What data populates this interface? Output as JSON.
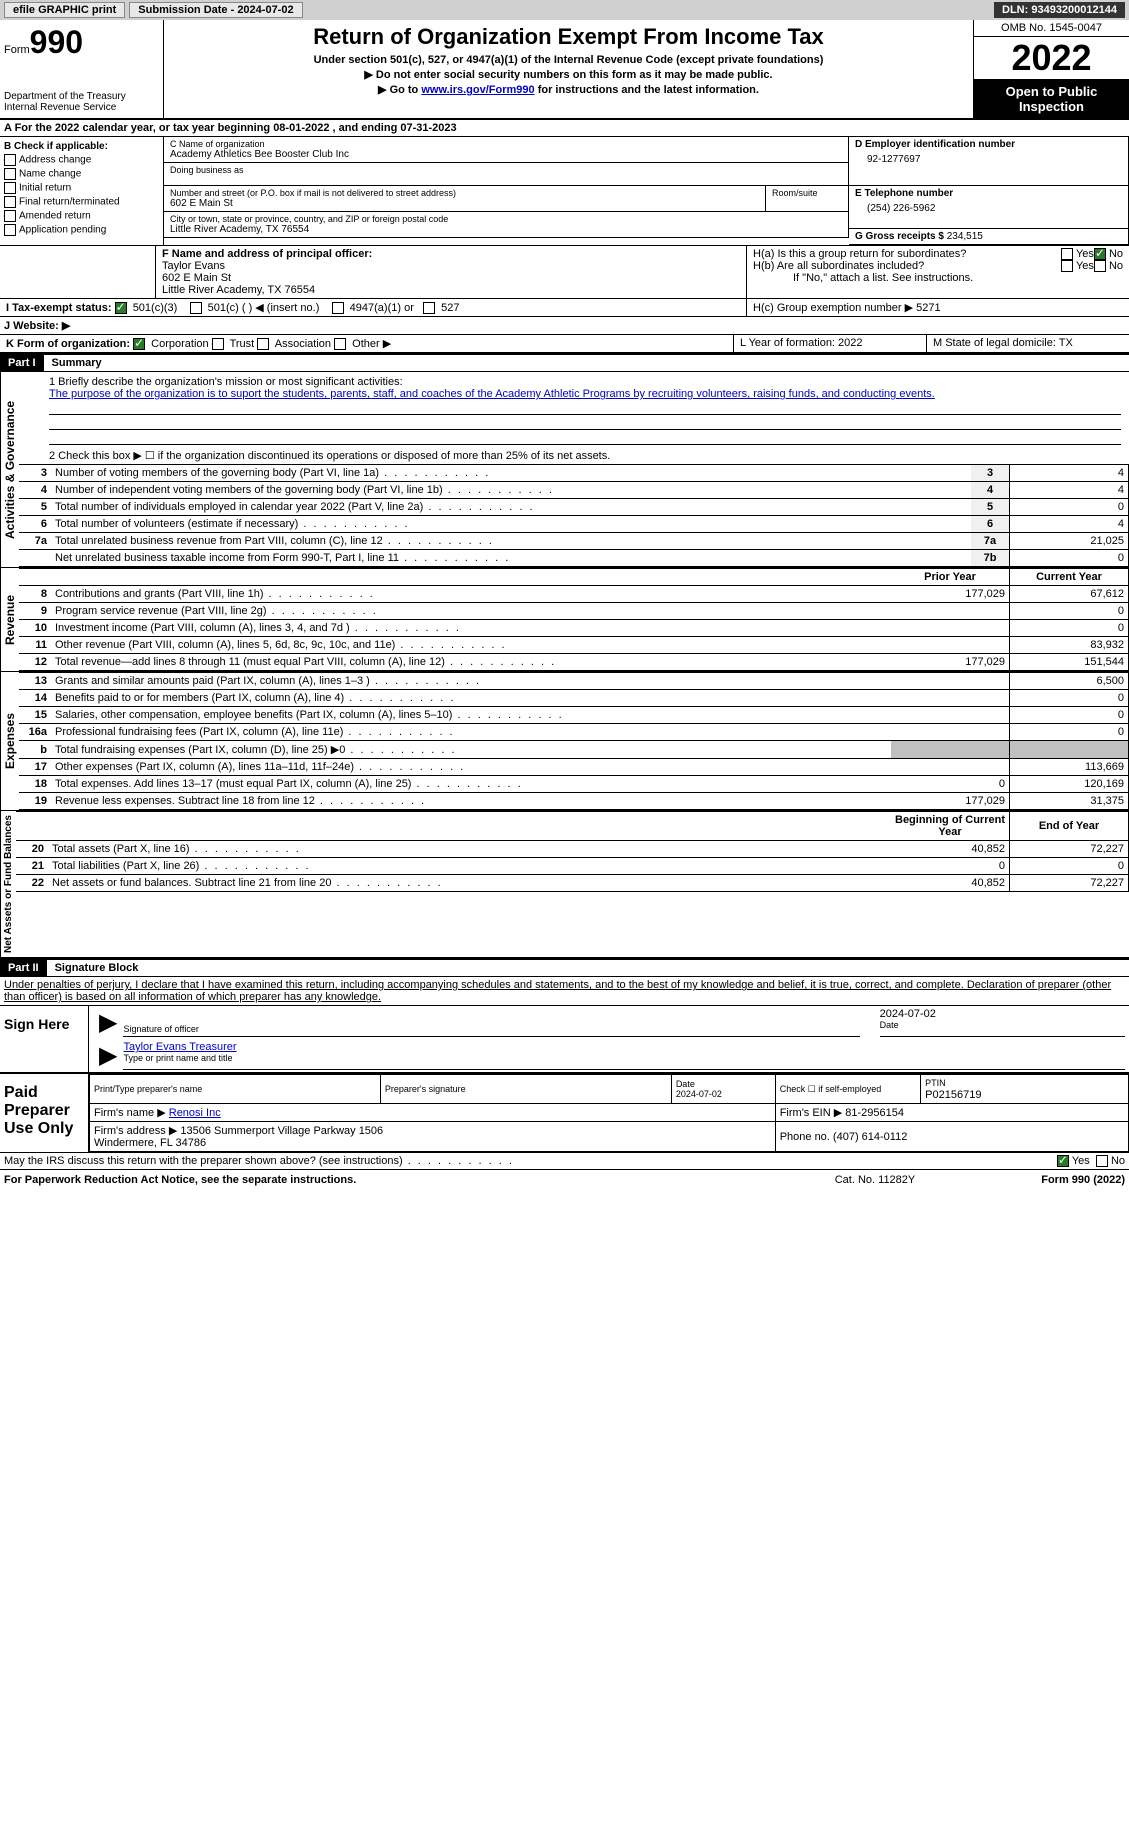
{
  "topbar": {
    "efile": "efile GRAPHIC print",
    "submission": "Submission Date - 2024-07-02",
    "dln": "DLN: 93493200012144"
  },
  "header": {
    "form": "Form",
    "number": "990",
    "dept": "Department of the Treasury\nInternal Revenue Service",
    "title": "Return of Organization Exempt From Income Tax",
    "subtitle1": "Under section 501(c), 527, or 4947(a)(1) of the Internal Revenue Code (except private foundations)",
    "subtitle2": "Do not enter social security numbers on this form as it may be made public.",
    "subtitle3_pre": "Go to ",
    "subtitle3_link": "www.irs.gov/Form990",
    "subtitle3_post": " for instructions and the latest information.",
    "omb": "OMB No. 1545-0047",
    "year": "2022",
    "open": "Open to Public Inspection"
  },
  "rowA": "A For the 2022 calendar year, or tax year beginning 08-01-2022   , and ending 07-31-2023",
  "rowB": {
    "label": "B Check if applicable:",
    "items": [
      "Address change",
      "Name change",
      "Initial return",
      "Final return/terminated",
      "Amended return",
      "Application pending"
    ]
  },
  "rowC": {
    "name_label": "C Name of organization",
    "name": "Academy Athletics Bee Booster Club Inc",
    "dba_label": "Doing business as",
    "addr_label": "Number and street (or P.O. box if mail is not delivered to street address)",
    "room_label": "Room/suite",
    "addr": "602 E Main St",
    "city_label": "City or town, state or province, country, and ZIP or foreign postal code",
    "city": "Little River Academy, TX  76554"
  },
  "rowD": {
    "label": "D Employer identification number",
    "value": "92-1277697"
  },
  "rowE": {
    "label": "E Telephone number",
    "value": "(254) 226-5962"
  },
  "rowG": {
    "label": "G Gross receipts $",
    "value": "234,515"
  },
  "rowF": {
    "label": "F  Name and address of principal officer:",
    "name": "Taylor Evans",
    "addr1": "602 E Main St",
    "addr2": "Little River Academy, TX  76554"
  },
  "rowH": {
    "a": "H(a)  Is this a group return for subordinates?",
    "b": "H(b)  Are all subordinates included?",
    "b2": "If \"No,\" attach a list. See instructions.",
    "c": "H(c)  Group exemption number ▶   5271",
    "yes": "Yes",
    "no": "No"
  },
  "rowI": {
    "label": "I   Tax-exempt status:",
    "o1": "501(c)(3)",
    "o2": "501(c) (  ) ◀ (insert no.)",
    "o3": "4947(a)(1) or",
    "o4": "527"
  },
  "rowJ": "J   Website: ▶",
  "rowK": {
    "label": "K Form of organization:",
    "o1": "Corporation",
    "o2": "Trust",
    "o3": "Association",
    "o4": "Other ▶"
  },
  "rowL": "L Year of formation: 2022",
  "rowM": "M State of legal domicile: TX",
  "part1": {
    "header": "Part I",
    "title": "Summary",
    "l1label": "1  Briefly describe the organization's mission or most significant activities:",
    "l1text": "The purpose of the organization is to suport the students, parents, staff, and coaches of the Academy Athletic Programs by recruiting volunteers, raising funds, and conducting events.",
    "l2": "2   Check this box ▶ ☐  if the organization discontinued its operations or disposed of more than 25% of its net assets.",
    "tabs": {
      "activities": "Activities & Governance",
      "revenue": "Revenue",
      "expenses": "Expenses",
      "netassets": "Net Assets or Fund Balances"
    },
    "lines_ag": [
      {
        "n": "3",
        "d": "Number of voting members of the governing body (Part VI, line 1a)",
        "b": "3",
        "v": "4"
      },
      {
        "n": "4",
        "d": "Number of independent voting members of the governing body (Part VI, line 1b)",
        "b": "4",
        "v": "4"
      },
      {
        "n": "5",
        "d": "Total number of individuals employed in calendar year 2022 (Part V, line 2a)",
        "b": "5",
        "v": "0"
      },
      {
        "n": "6",
        "d": "Total number of volunteers (estimate if necessary)",
        "b": "6",
        "v": "4"
      },
      {
        "n": "7a",
        "d": "Total unrelated business revenue from Part VIII, column (C), line 12",
        "b": "7a",
        "v": "21,025"
      },
      {
        "n": "",
        "d": "Net unrelated business taxable income from Form 990-T, Part I, line 11",
        "b": "7b",
        "v": "0"
      }
    ],
    "hdr_prior": "Prior Year",
    "hdr_curr": "Current Year",
    "lines_rev": [
      {
        "n": "8",
        "d": "Contributions and grants (Part VIII, line 1h)",
        "p": "177,029",
        "c": "67,612"
      },
      {
        "n": "9",
        "d": "Program service revenue (Part VIII, line 2g)",
        "p": "",
        "c": "0"
      },
      {
        "n": "10",
        "d": "Investment income (Part VIII, column (A), lines 3, 4, and 7d )",
        "p": "",
        "c": "0"
      },
      {
        "n": "11",
        "d": "Other revenue (Part VIII, column (A), lines 5, 6d, 8c, 9c, 10c, and 11e)",
        "p": "",
        "c": "83,932"
      },
      {
        "n": "12",
        "d": "Total revenue—add lines 8 through 11 (must equal Part VIII, column (A), line 12)",
        "p": "177,029",
        "c": "151,544"
      }
    ],
    "lines_exp": [
      {
        "n": "13",
        "d": "Grants and similar amounts paid (Part IX, column (A), lines 1–3 )",
        "p": "",
        "c": "6,500"
      },
      {
        "n": "14",
        "d": "Benefits paid to or for members (Part IX, column (A), line 4)",
        "p": "",
        "c": "0"
      },
      {
        "n": "15",
        "d": "Salaries, other compensation, employee benefits (Part IX, column (A), lines 5–10)",
        "p": "",
        "c": "0"
      },
      {
        "n": "16a",
        "d": "Professional fundraising fees (Part IX, column (A), line 11e)",
        "p": "",
        "c": "0"
      },
      {
        "n": "b",
        "d": "Total fundraising expenses (Part IX, column (D), line 25) ▶0",
        "p": "shade",
        "c": "shade"
      },
      {
        "n": "17",
        "d": "Other expenses (Part IX, column (A), lines 11a–11d, 11f–24e)",
        "p": "",
        "c": "113,669"
      },
      {
        "n": "18",
        "d": "Total expenses. Add lines 13–17 (must equal Part IX, column (A), line 25)",
        "p": "0",
        "c": "120,169"
      },
      {
        "n": "19",
        "d": "Revenue less expenses. Subtract line 18 from line 12",
        "p": "177,029",
        "c": "31,375"
      }
    ],
    "hdr_beg": "Beginning of Current Year",
    "hdr_end": "End of Year",
    "lines_na": [
      {
        "n": "20",
        "d": "Total assets (Part X, line 16)",
        "p": "40,852",
        "c": "72,227"
      },
      {
        "n": "21",
        "d": "Total liabilities (Part X, line 26)",
        "p": "0",
        "c": "0"
      },
      {
        "n": "22",
        "d": "Net assets or fund balances. Subtract line 21 from line 20",
        "p": "40,852",
        "c": "72,227"
      }
    ]
  },
  "part2": {
    "header": "Part II",
    "title": "Signature Block",
    "decl": "Under penalties of perjury, I declare that I have examined this return, including accompanying schedules and statements, and to the best of my knowledge and belief, it is true, correct, and complete. Declaration of preparer (other than officer) is based on all information of which preparer has any knowledge.",
    "sign_here": "Sign Here",
    "sig_officer": "Signature of officer",
    "date_lbl": "Date",
    "date": "2024-07-02",
    "name_title": "Taylor Evans  Treasurer",
    "type_lbl": "Type or print name and title",
    "paid": "Paid Preparer Use Only",
    "pt_name": "Print/Type preparer's name",
    "pt_sig": "Preparer's signature",
    "pt_date": "Date\n2024-07-02",
    "pt_chk": "Check ☐ if self-employed",
    "ptin_lbl": "PTIN",
    "ptin": "P02156719",
    "firm_name_lbl": "Firm's name  ▶",
    "firm_name": "Renosi Inc",
    "firm_ein_lbl": "Firm's EIN ▶",
    "firm_ein": "81-2956154",
    "firm_addr_lbl": "Firm's address ▶",
    "firm_addr": "13506 Summerport Village Parkway 1506\nWindermere, FL  34786",
    "phone_lbl": "Phone no.",
    "phone": "(407) 614-0112",
    "discuss": "May the IRS discuss this return with the preparer shown above? (see instructions)"
  },
  "footer": {
    "left": "For Paperwork Reduction Act Notice, see the separate instructions.",
    "mid": "Cat. No. 11282Y",
    "right": "Form 990 (2022)"
  }
}
